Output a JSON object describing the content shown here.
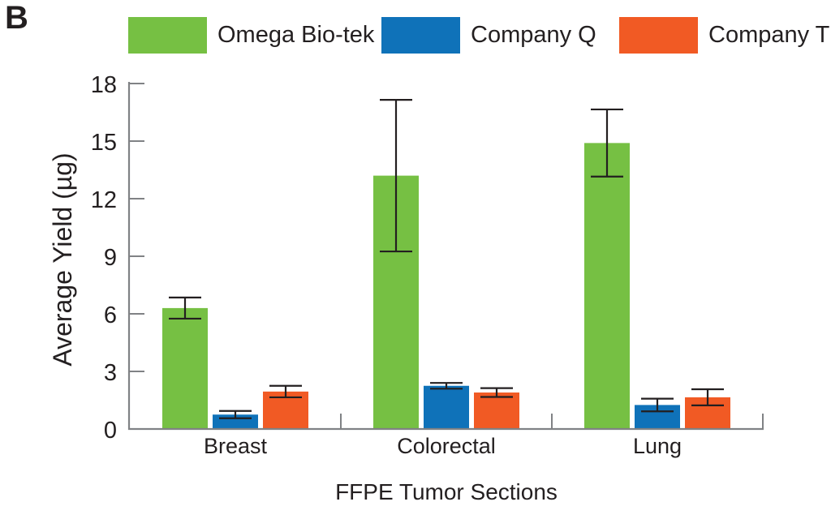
{
  "panel_label": "B",
  "colors": {
    "axis": "#808285",
    "text": "#231F20",
    "error_bar": "#231F20",
    "background": "#ffffff"
  },
  "chart_data": {
    "type": "bar",
    "title": "",
    "categories": [
      "Breast",
      "Colorectal",
      "Lung"
    ],
    "series": [
      {
        "name": "Omega Bio-tek",
        "color": "#76C043",
        "values": [
          6.3,
          13.2,
          14.9
        ],
        "errors": [
          0.55,
          3.95,
          1.75
        ]
      },
      {
        "name": "Company Q",
        "color": "#0F72B9",
        "values": [
          0.75,
          2.25,
          1.25
        ],
        "errors": [
          0.19,
          0.15,
          0.33
        ]
      },
      {
        "name": "Company T",
        "color": "#F15A24",
        "values": [
          1.95,
          1.9,
          1.65
        ],
        "errors": [
          0.3,
          0.23,
          0.42
        ]
      }
    ],
    "xlabel": "FFPE Tumor Sections",
    "ylabel": "Average Yield (µg)",
    "yticks": [
      0,
      3,
      6,
      9,
      12,
      15,
      18
    ],
    "ylim": [
      0,
      18
    ],
    "legend_position": "top",
    "grid": false
  }
}
